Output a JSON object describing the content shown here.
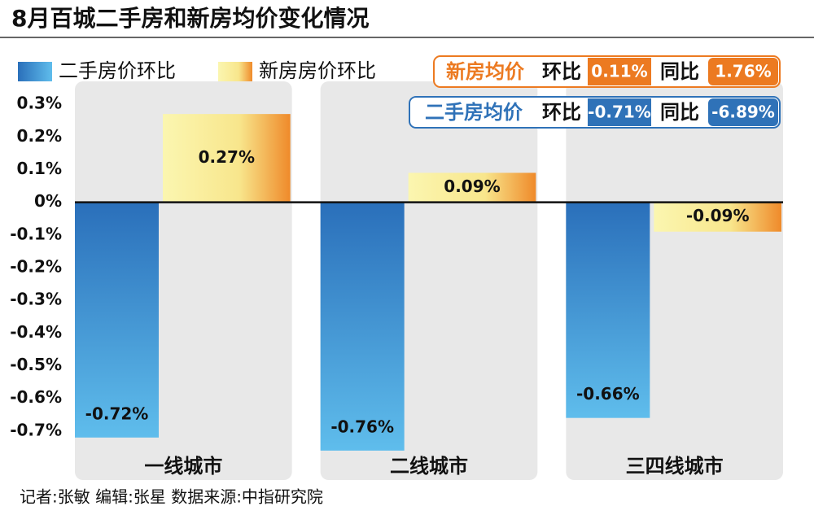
{
  "chart_data": {
    "type": "bar",
    "title": "8月百城二手房和新房均价变化情况",
    "categories": [
      "一线城市",
      "二线城市",
      "三四线城市"
    ],
    "series": [
      {
        "name": "二手房价环比",
        "color": "#3a86cf",
        "values": [
          -0.72,
          -0.76,
          -0.66
        ],
        "value_labels": [
          "-0.72%",
          "-0.76%",
          "-0.66%"
        ]
      },
      {
        "name": "新房房价环比",
        "color": "#f6d870",
        "values": [
          0.27,
          0.09,
          -0.09
        ],
        "value_labels": [
          "0.27%",
          "0.09%",
          "-0.09%"
        ]
      }
    ],
    "ylim": [
      -0.85,
      0.35
    ],
    "yticks": [
      {
        "value": 0.3,
        "label": "0.3%"
      },
      {
        "value": 0.2,
        "label": "0.2%"
      },
      {
        "value": 0.1,
        "label": "0.1%"
      },
      {
        "value": 0,
        "label": "0%"
      },
      {
        "value": -0.1,
        "label": "-0.1%"
      },
      {
        "value": -0.2,
        "label": "-0.2%"
      },
      {
        "value": -0.3,
        "label": "-0.3%"
      },
      {
        "value": -0.4,
        "label": "-0.4%"
      },
      {
        "value": -0.5,
        "label": "-0.5%"
      },
      {
        "value": -0.6,
        "label": "-0.6%"
      },
      {
        "value": -0.7,
        "label": "-0.7%"
      }
    ],
    "grid": false,
    "info": [
      {
        "name": "新房均价",
        "mom_label": "环比",
        "mom": "0.11%",
        "yoy_label": "同比",
        "yoy": "1.76%"
      },
      {
        "name": "二手房均价",
        "mom_label": "环比",
        "mom": "-0.71%",
        "yoy_label": "同比",
        "yoy": "-6.89%"
      }
    ],
    "footer": "记者:张敏  编辑:张星  数据来源:中指研究院"
  }
}
